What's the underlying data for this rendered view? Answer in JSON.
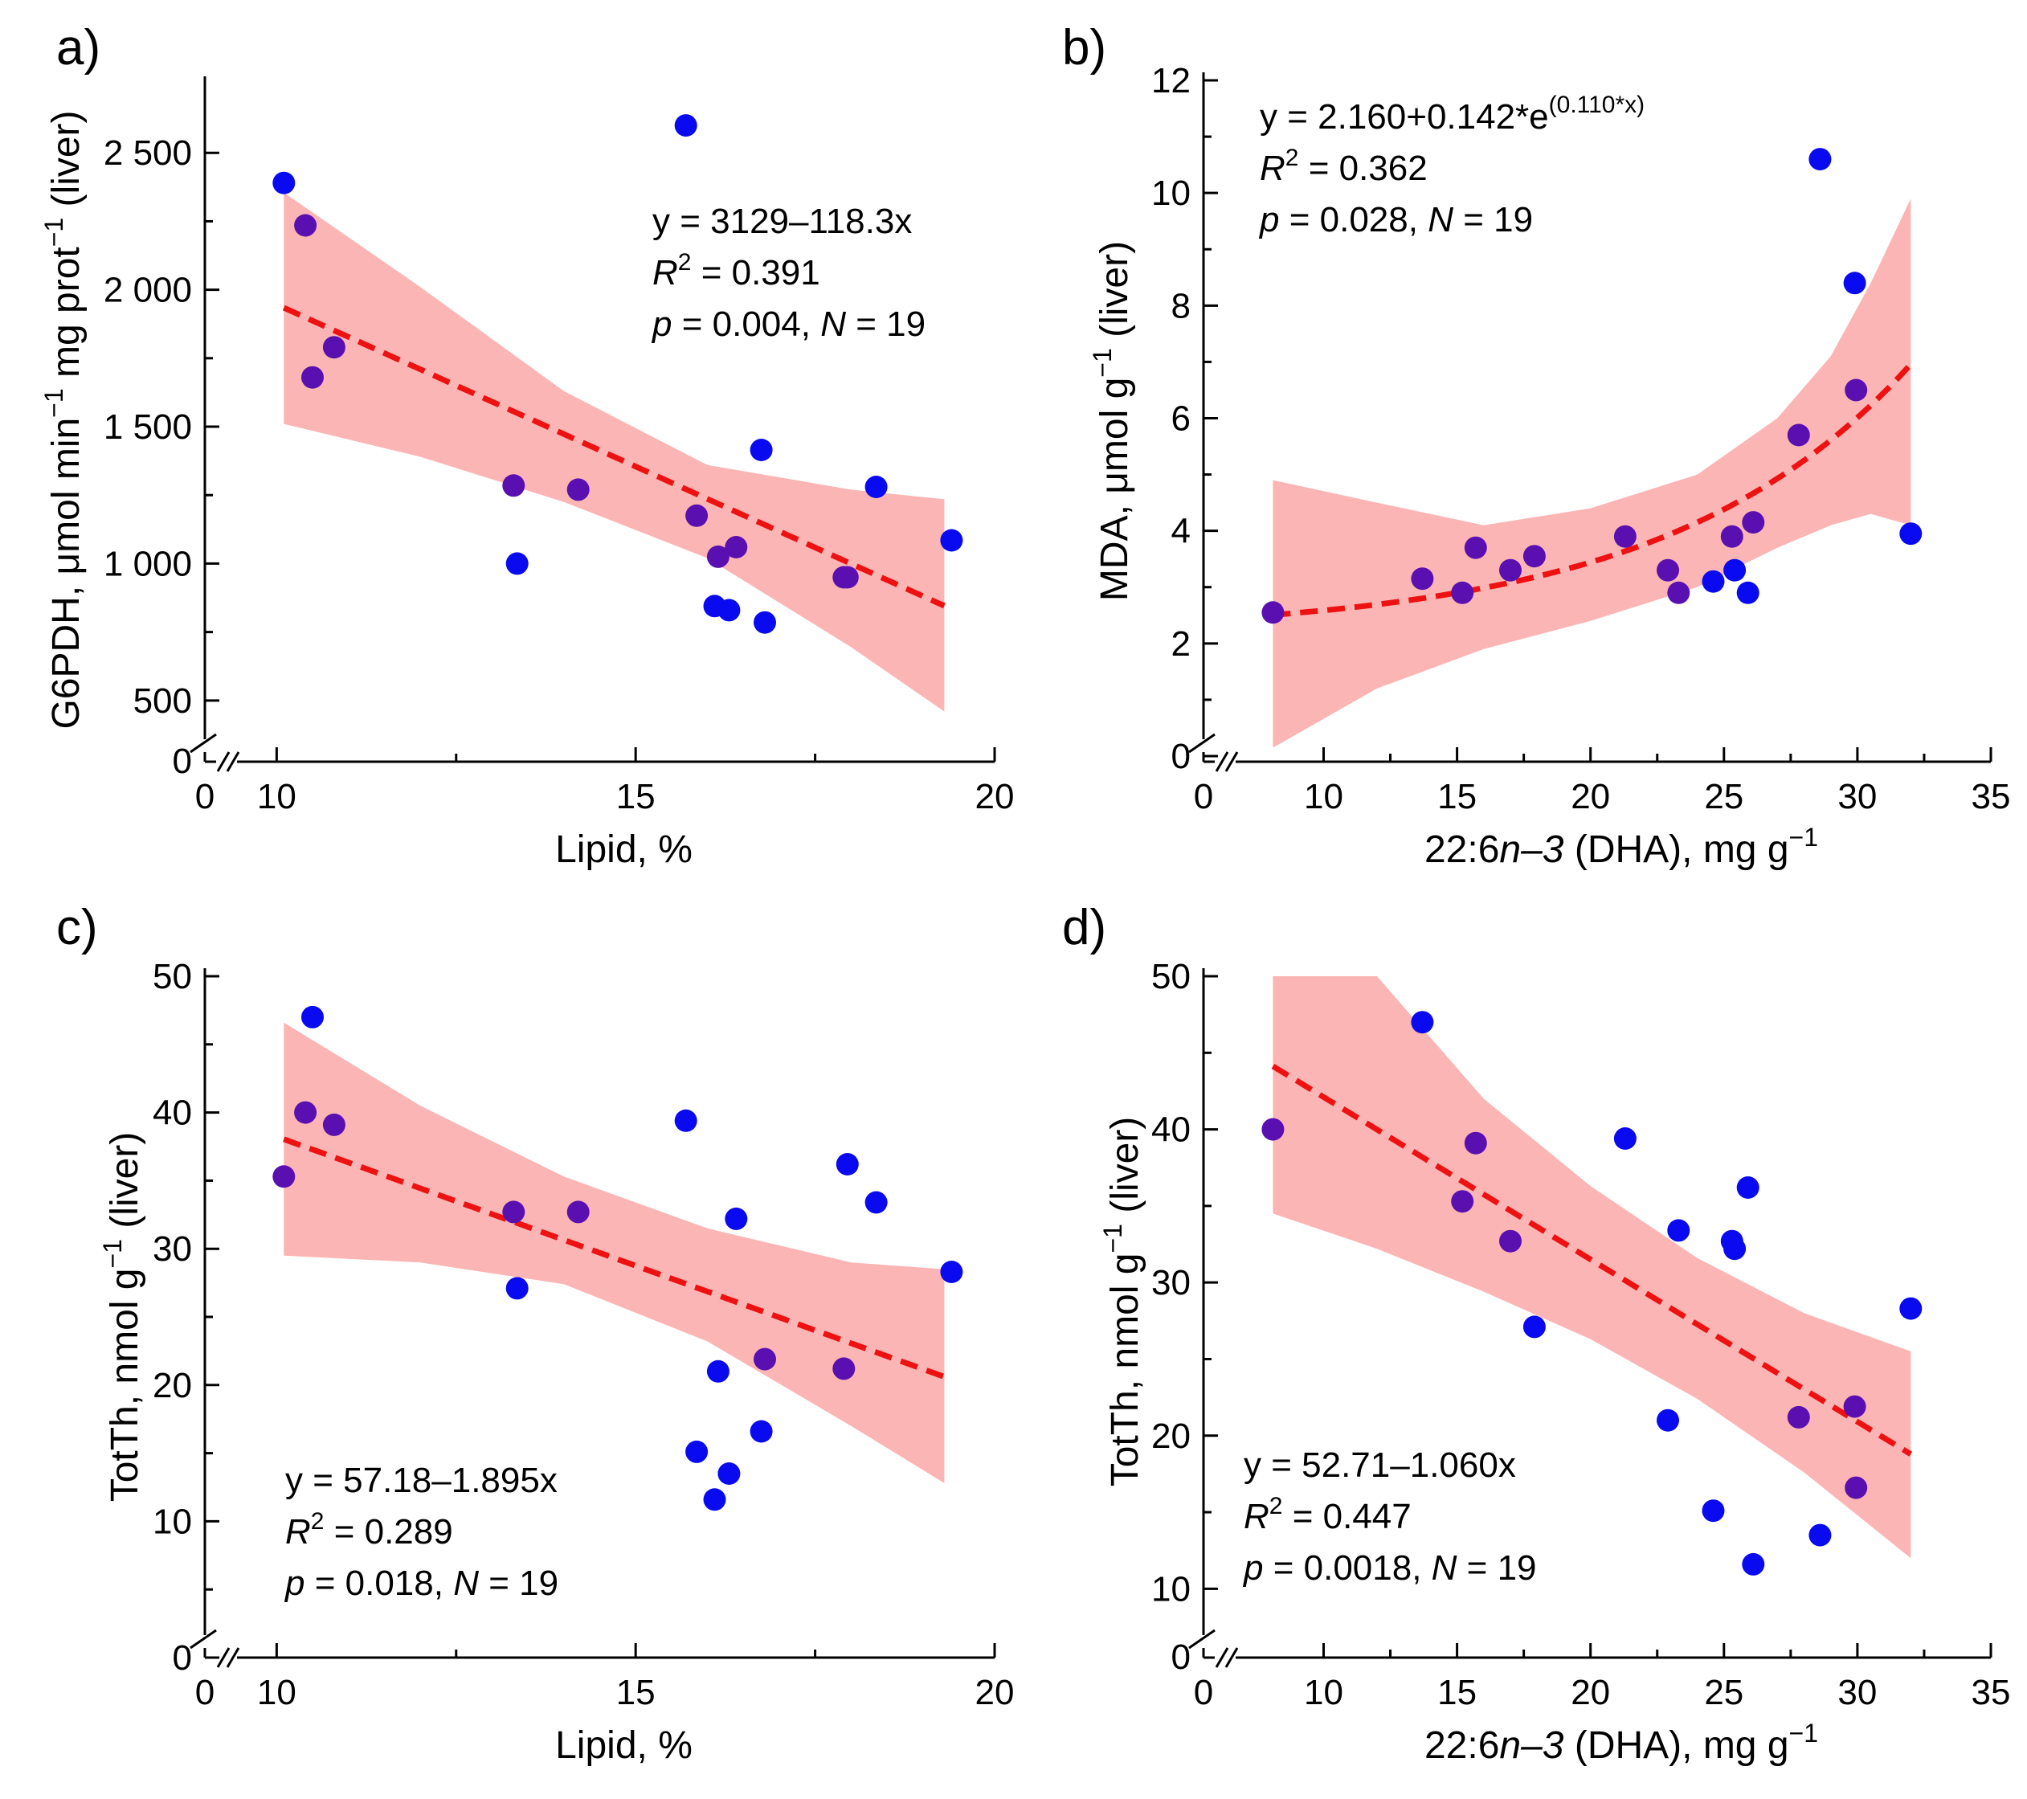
{
  "chart_data": [
    {
      "panel": "a)",
      "type": "scatter",
      "xlabel": "Lipid, %",
      "ylabel": "G6PDH, μmol min−1 mg prot−1 (liver)",
      "ylabel_parts": [
        "G6PDH, μmol min",
        "−1",
        " mg prot",
        "−1",
        " (liver)"
      ],
      "xlim": [
        9,
        20
      ],
      "ylim": [
        300,
        2750
      ],
      "xticks": [
        10,
        15,
        20
      ],
      "xtick_labels": [
        "10",
        "15",
        "20"
      ],
      "yticks": [
        500,
        1000,
        1500,
        2000,
        2500
      ],
      "ytick_labels": [
        "500",
        "1 000",
        "1 500",
        "2 000",
        "2 500"
      ],
      "axis_break": {
        "x_zero_label": "0",
        "y_zero_label": "0"
      },
      "points": {
        "x": [
          10.1,
          10.4,
          10.5,
          10.8,
          13.3,
          13.35,
          14.2,
          15.7,
          15.85,
          16.1,
          16.15,
          16.3,
          16.4,
          16.75,
          16.8,
          17.9,
          17.95,
          18.35,
          19.4
        ],
        "y": [
          2390,
          2235,
          1680,
          1790,
          1285,
          1000,
          1270,
          2600,
          1175,
          845,
          1025,
          830,
          1060,
          1415,
          785,
          950,
          950,
          1280,
          1085
        ]
      },
      "fit": {
        "kind": "linear",
        "a": 3129,
        "b": -118.3,
        "x_range": [
          10.1,
          19.3
        ]
      },
      "band": {
        "x": [
          10.1,
          12,
          14,
          16,
          18,
          19.3
        ],
        "lower": [
          1510,
          1390,
          1225,
          1020,
          695,
          460
        ],
        "upper": [
          2355,
          2010,
          1630,
          1360,
          1270,
          1235
        ]
      },
      "annotation": {
        "equation": "y = 3129–118.3x",
        "r2_value": "= 0.391",
        "p_text": "= 0.004,",
        "n_text": "= 19"
      }
    },
    {
      "panel": "b)",
      "type": "scatter",
      "xlabel": "22:6n–3 (DHA), mg g−1",
      "xlabel_parts": [
        "22:6",
        "n–3",
        " (DHA), mg g",
        "−1"
      ],
      "ylabel": "MDA, μmol g−1 (liver)",
      "ylabel_parts": [
        "MDA, μmol g",
        "−1",
        " (liver)"
      ],
      "xlim": [
        5.5,
        35
      ],
      "ylim": [
        -0.1,
        12
      ],
      "xticks": [
        10,
        15,
        20,
        25,
        30,
        35
      ],
      "xtick_labels": [
        "10",
        "15",
        "20",
        "25",
        "30",
        "35"
      ],
      "yticks": [
        0,
        2,
        4,
        6,
        8,
        10,
        12
      ],
      "ytick_labels": [
        "0",
        "2",
        "4",
        "6",
        "8",
        "10",
        "12"
      ],
      "axis_break": {
        "x_zero_label": "0"
      },
      "points": {
        "x": [
          8.1,
          13.7,
          15.2,
          15.7,
          17.0,
          17.9,
          21.3,
          22.9,
          23.3,
          24.6,
          25.3,
          25.4,
          25.9,
          26.1,
          27.8,
          28.6,
          29.9,
          29.95,
          32.0
        ],
        "y": [
          2.55,
          3.15,
          2.9,
          3.7,
          3.3,
          3.55,
          3.9,
          3.3,
          2.9,
          3.1,
          3.9,
          3.3,
          2.9,
          4.15,
          5.7,
          10.6,
          8.4,
          6.5,
          3.95
        ]
      },
      "fit": {
        "kind": "exponential",
        "a": 2.16,
        "b": 0.142,
        "c": 0.11,
        "x_range": [
          8.1,
          32.0
        ]
      },
      "band": {
        "x": [
          8.1,
          12,
          16,
          20,
          24,
          27,
          29,
          30.5,
          32
        ],
        "lower": [
          0.15,
          1.2,
          1.9,
          2.4,
          3.0,
          3.7,
          4.1,
          4.3,
          4.1
        ],
        "upper": [
          4.9,
          4.5,
          4.1,
          4.4,
          5.0,
          6.0,
          7.1,
          8.4,
          9.9
        ]
      },
      "annotation": {
        "equation_main": "y = 2.160+0.142*e",
        "equation_exp": "(0.110*x)",
        "r2_value": "= 0.362",
        "p_text": "= 0.028,",
        "n_text": "= 19"
      }
    },
    {
      "panel": "c)",
      "type": "scatter",
      "xlabel": "Lipid, %",
      "ylabel": "TotTh, nmol g−1 (liver)",
      "ylabel_parts": [
        "TotTh, nmol g",
        "−1",
        " (liver)"
      ],
      "xlim": [
        9,
        20
      ],
      "ylim": [
        0,
        50
      ],
      "xticks": [
        10,
        15,
        20
      ],
      "xtick_labels": [
        "10",
        "15",
        "20"
      ],
      "yticks": [
        0,
        10,
        20,
        30,
        40,
        50
      ],
      "ytick_labels": [
        "0",
        "10",
        "20",
        "30",
        "40",
        "50"
      ],
      "axis_break": {
        "x_zero_label": "0"
      },
      "points": {
        "x": [
          10.1,
          10.4,
          10.5,
          10.8,
          13.3,
          13.35,
          14.2,
          15.7,
          15.85,
          16.1,
          16.15,
          16.3,
          16.4,
          16.75,
          16.8,
          17.9,
          17.95,
          18.35,
          19.4
        ],
        "y": [
          35.3,
          40.0,
          47.0,
          39.1,
          32.7,
          27.1,
          32.7,
          39.4,
          15.1,
          11.6,
          21.0,
          13.5,
          32.2,
          16.6,
          21.9,
          21.2,
          36.2,
          33.4,
          28.3
        ]
      },
      "fit": {
        "kind": "linear",
        "a": 57.18,
        "b": -1.895,
        "x_range": [
          10.1,
          19.3
        ]
      },
      "band": {
        "x": [
          10.1,
          12,
          14,
          16,
          18,
          19.3
        ],
        "lower": [
          29.5,
          29.0,
          27.4,
          23.2,
          17.0,
          12.8
        ],
        "upper": [
          46.6,
          40.5,
          35.3,
          31.5,
          29.0,
          28.5
        ]
      },
      "annotation": {
        "equation": "y = 57.18–1.895x",
        "r2_value": "= 0.289",
        "p_text": "= 0.018,",
        "n_text": "= 19"
      }
    },
    {
      "panel": "d)",
      "type": "scatter",
      "xlabel": "22:6n–3 (DHA), mg g−1",
      "xlabel_parts": [
        "22:6",
        "n–3",
        " (DHA), mg g",
        "−1"
      ],
      "ylabel": "TotTh, nmol g−1 (liver)",
      "ylabel_parts": [
        "TotTh, nmol g",
        "−1",
        " (liver)"
      ],
      "xlim": [
        5.5,
        35
      ],
      "ylim": [
        7.5,
        50
      ],
      "xticks": [
        10,
        15,
        20,
        25,
        30,
        35
      ],
      "xtick_labels": [
        "10",
        "15",
        "20",
        "25",
        "30",
        "35"
      ],
      "yticks": [
        10,
        20,
        30,
        40,
        50
      ],
      "ytick_labels": [
        "10",
        "20",
        "30",
        "40",
        "50"
      ],
      "axis_break": {
        "x_zero_label": "0",
        "y_zero_label": "0"
      },
      "points": {
        "x": [
          8.1,
          13.7,
          15.2,
          15.7,
          17.0,
          17.9,
          21.3,
          22.9,
          23.3,
          24.6,
          25.3,
          25.4,
          25.9,
          26.1,
          27.8,
          28.6,
          29.9,
          29.95,
          32.0
        ],
        "y": [
          40.0,
          47.0,
          35.3,
          39.1,
          32.7,
          27.1,
          39.4,
          21.0,
          33.4,
          15.1,
          32.7,
          32.2,
          36.2,
          11.6,
          21.2,
          13.5,
          21.9,
          16.6,
          28.3
        ]
      },
      "fit": {
        "kind": "linear",
        "a": 52.71,
        "b": -1.06,
        "x_range": [
          8.1,
          32.0
        ]
      },
      "band": {
        "x": [
          8.1,
          12,
          16,
          20,
          24,
          28,
          32
        ],
        "lower": [
          34.5,
          32.2,
          29.4,
          26.3,
          22.4,
          17.6,
          12.0
        ],
        "upper": [
          50,
          50,
          42.0,
          36.3,
          31.6,
          28.0,
          25.5
        ]
      },
      "annotation": {
        "equation": "y = 52.71–1.060x",
        "r2_value": "= 0.447",
        "p_text": "= 0.0018,",
        "n_text": "= 19"
      }
    }
  ],
  "style": {
    "point_color": "#0a0af0",
    "overlap_point_color": "#5a10b0",
    "fit_color": "#ee1111",
    "band_color": "#fcb5b5",
    "axis_color": "#000000"
  },
  "labels": {
    "r_symbol": "R",
    "r_sup": "2",
    "p_symbol": "p",
    "n_symbol": "N"
  }
}
